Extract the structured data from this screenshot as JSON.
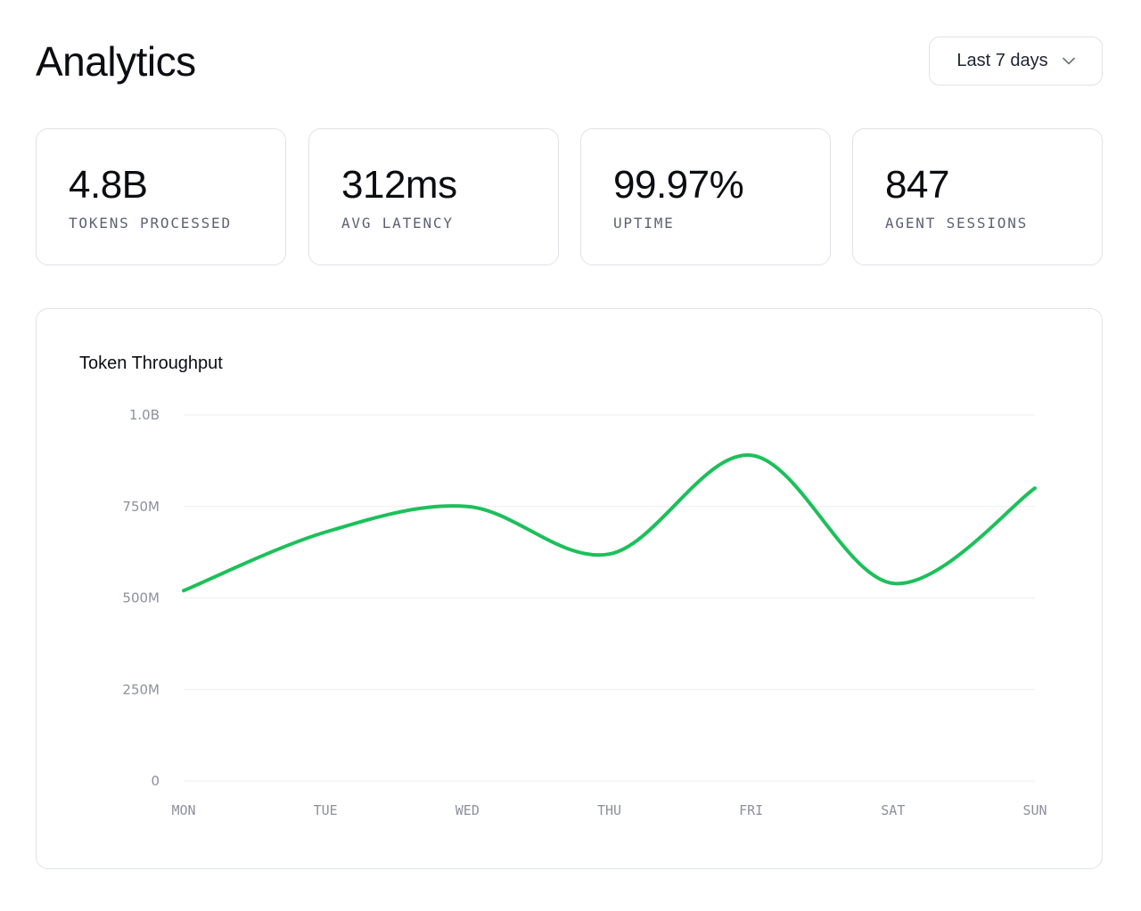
{
  "header": {
    "title": "Analytics",
    "range_select": {
      "value": "Last 7 days",
      "icon": "chevron-down-icon"
    }
  },
  "stats": [
    {
      "value": "4.8B",
      "label": "TOKENS PROCESSED"
    },
    {
      "value": "312ms",
      "label": "AVG LATENCY"
    },
    {
      "value": "99.97%",
      "label": "UPTIME"
    },
    {
      "value": "847",
      "label": "AGENT SESSIONS"
    }
  ],
  "colors": {
    "accent": "#1cc05a",
    "grid": "#eceef1",
    "border": "#dfe2e7"
  },
  "chart_data": {
    "type": "line",
    "title": "Token Throughput",
    "categories": [
      "MON",
      "TUE",
      "WED",
      "THU",
      "FRI",
      "SAT",
      "SUN"
    ],
    "series": [
      {
        "name": "Token Throughput",
        "values": [
          520,
          680,
          750,
          620,
          890,
          540,
          800
        ]
      }
    ],
    "y_ticks": [
      0,
      250,
      500,
      750,
      1000
    ],
    "y_tick_labels": [
      "0",
      "250M",
      "500M",
      "750M",
      "1.0B"
    ],
    "ylim": [
      0,
      1000
    ],
    "y_unit": "M tokens",
    "xlabel": "",
    "ylabel": "",
    "grid": true
  }
}
